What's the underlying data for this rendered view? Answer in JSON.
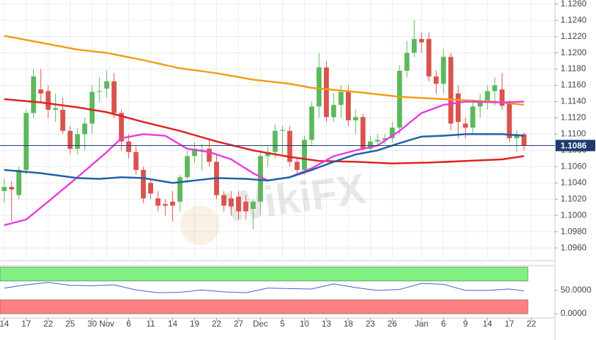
{
  "chart_data": {
    "type": "candlestick",
    "watermark": "WikiFX",
    "grid": true,
    "up_color": "#5cb85c",
    "down_color": "#d9534f",
    "categories": [
      "14",
      null,
      null,
      "17",
      null,
      null,
      "22",
      null,
      null,
      "25",
      null,
      null,
      "30",
      null,
      "Nov",
      null,
      null,
      "6",
      null,
      null,
      "11",
      null,
      null,
      "14",
      null,
      null,
      "19",
      null,
      null,
      "22",
      null,
      null,
      "27",
      null,
      null,
      "Dec",
      null,
      null,
      "5",
      null,
      null,
      "10",
      null,
      null,
      "13",
      null,
      null,
      "18",
      null,
      null,
      "23",
      null,
      null,
      "26",
      null,
      null,
      null,
      "Jan",
      null,
      null,
      "6",
      null,
      null,
      "9",
      null,
      null,
      "14",
      null,
      null,
      "17",
      null,
      null,
      "22"
    ],
    "open": [
      1.103,
      1.1035,
      1.1025,
      1.1056,
      1.1126,
      1.1155,
      1.1153,
      1.113,
      1.113,
      1.1104,
      1.1082,
      1.11,
      1.1113,
      1.1152,
      1.1156,
      1.1165,
      1.1126,
      1.1091,
      1.1078,
      1.1056,
      1.104,
      1.1021,
      1.1014,
      1.1017,
      1.1017,
      1.1047,
      1.1073,
      1.108,
      1.1082,
      1.1066,
      1.1025,
      1.1021,
      1.1023,
      1.1017,
      1.1008,
      1.1017,
      1.1073,
      1.1078,
      1.1104,
      1.1104,
      1.1066,
      1.1056,
      1.1093,
      1.1134,
      1.1182,
      1.1121,
      1.1136,
      1.1152,
      1.1117,
      1.1121,
      1.1082,
      1.1091,
      1.1093,
      1.1095,
      1.1108,
      1.1178,
      1.12,
      1.1217,
      1.1217,
      1.1171,
      1.1162,
      1.1195,
      1.115,
      1.1113,
      1.1108,
      1.1134,
      1.1139,
      1.1153,
      1.1155,
      1.1139,
      1.1095,
      1.11,
      null
    ],
    "high": [
      1.1045,
      1.1042,
      1.106,
      1.113,
      1.118,
      1.118,
      1.116,
      1.115,
      1.1145,
      1.111,
      1.1108,
      1.112,
      1.116,
      1.117,
      1.1178,
      1.1175,
      1.113,
      1.11,
      1.1085,
      1.106,
      1.1045,
      1.103,
      1.102,
      1.103,
      1.105,
      1.108,
      1.109,
      1.1088,
      1.1095,
      1.1075,
      1.103,
      1.103,
      1.103,
      1.1025,
      1.102,
      1.108,
      1.1085,
      1.1112,
      1.111,
      1.111,
      1.107,
      1.1098,
      1.114,
      1.12,
      1.119,
      1.115,
      1.116,
      1.116,
      1.113,
      1.1125,
      1.1098,
      1.11,
      1.11,
      1.1115,
      1.1185,
      1.1215,
      1.124,
      1.1225,
      1.1225,
      1.1178,
      1.1205,
      1.12,
      1.116,
      1.112,
      1.114,
      1.115,
      1.116,
      1.117,
      1.1175,
      1.1142,
      1.1105,
      1.1102,
      null
    ],
    "low": [
      1.1015,
      1.0993,
      1.102,
      1.105,
      1.112,
      1.114,
      1.112,
      1.1115,
      1.11,
      1.1075,
      1.1075,
      1.108,
      1.11,
      1.114,
      1.1145,
      1.112,
      1.108,
      1.107,
      1.105,
      1.1015,
      1.102,
      1.1005,
      1.1,
      1.0993,
      1.1005,
      1.104,
      1.1065,
      1.1055,
      1.106,
      1.102,
      1.1005,
      1.1,
      1.0995,
      1.0995,
      1.0983,
      1.1,
      1.106,
      1.107,
      1.1075,
      1.106,
      1.105,
      1.105,
      1.1085,
      1.112,
      1.1115,
      1.1115,
      1.112,
      1.111,
      1.11,
      1.108,
      1.108,
      1.1085,
      1.1088,
      1.109,
      1.11,
      1.117,
      1.1195,
      1.12,
      1.1165,
      1.115,
      1.115,
      1.1105,
      1.1095,
      1.1095,
      1.11,
      1.112,
      1.113,
      1.1135,
      1.113,
      1.109,
      1.1078,
      1.108,
      null
    ],
    "close": [
      1.1035,
      1.1032,
      1.1056,
      1.1126,
      1.1171,
      1.115,
      1.113,
      1.1132,
      1.1104,
      1.1082,
      1.11,
      1.1113,
      1.1152,
      1.1153,
      1.1165,
      1.1126,
      1.1091,
      1.1078,
      1.1056,
      1.1021,
      1.1027,
      1.1012,
      1.1012,
      1.1012,
      1.1047,
      1.1073,
      1.1082,
      1.1081,
      1.1066,
      1.1025,
      1.1012,
      1.1011,
      1.1005,
      1.1005,
      1.1017,
      1.1073,
      1.1078,
      1.1104,
      1.1105,
      1.1066,
      1.1056,
      1.1093,
      1.1134,
      1.1182,
      1.1121,
      1.1136,
      1.1152,
      1.1117,
      1.1121,
      1.1082,
      1.1091,
      1.1093,
      1.1095,
      1.1108,
      1.1178,
      1.12,
      1.1217,
      1.1213,
      1.1171,
      1.1162,
      1.1195,
      1.1113,
      1.1115,
      1.1108,
      1.1134,
      1.1139,
      1.1153,
      1.116,
      1.1135,
      1.1095,
      1.11,
      1.1086,
      null
    ],
    "lines": [
      {
        "color": "#f39c12",
        "x": [
          0,
          10,
          14,
          19,
          24,
          29,
          34,
          39,
          42,
          48,
          54,
          60,
          67,
          71
        ],
        "values": [
          1.1221,
          1.1204,
          1.12,
          1.1191,
          1.1181,
          1.1175,
          1.1167,
          1.1162,
          1.1157,
          1.1152,
          1.1146,
          1.1143,
          1.114,
          1.1136
        ]
      },
      {
        "color": "#e02020",
        "x": [
          0,
          5,
          10,
          14,
          19,
          24,
          29,
          34,
          39,
          43,
          48,
          53,
          58,
          63,
          68,
          71
        ],
        "values": [
          1.1143,
          1.1139,
          1.1133,
          1.1127,
          1.1115,
          1.1104,
          1.1091,
          1.108,
          1.1072,
          1.1067,
          1.1066,
          1.1064,
          1.1065,
          1.1067,
          1.1069,
          1.1073
        ]
      },
      {
        "color": "#e83ee0",
        "x": [
          0,
          3,
          6,
          10,
          14,
          16,
          19,
          22,
          25,
          28,
          31,
          34,
          36,
          39,
          42,
          45,
          48,
          51,
          54,
          57,
          60,
          63,
          68,
          71
        ],
        "values": [
          1.0988,
          1.0995,
          1.1017,
          1.1047,
          1.1078,
          1.1095,
          1.11,
          1.1098,
          1.1082,
          1.1078,
          1.1069,
          1.1052,
          1.1043,
          1.1047,
          1.1058,
          1.1073,
          1.108,
          1.1086,
          1.1104,
          1.1126,
          1.1136,
          1.114,
          1.1139,
          1.114
        ]
      },
      {
        "color": "#1f5fa8",
        "x": [
          0,
          5,
          10,
          13,
          16,
          19,
          23,
          26,
          29,
          33,
          36,
          39,
          42,
          45,
          48,
          51,
          54,
          57,
          60,
          63,
          68,
          71
        ],
        "values": [
          1.1056,
          1.1052,
          1.1046,
          1.1045,
          1.1047,
          1.1046,
          1.104,
          1.1043,
          1.1046,
          1.1045,
          1.1043,
          1.1047,
          1.1056,
          1.1066,
          1.1075,
          1.108,
          1.1089,
          1.1097,
          1.1098,
          1.11,
          1.11,
          1.1098
        ]
      }
    ],
    "last_price": 1.1086,
    "ylim": [
      1.0947,
      1.1265
    ],
    "yticks": [
      {
        "value": 1.096,
        "label": "1.0960"
      },
      {
        "value": 1.098,
        "label": "1.0980"
      },
      {
        "value": 1.1,
        "label": "1.1000"
      },
      {
        "value": 1.102,
        "label": "1.1020"
      },
      {
        "value": 1.104,
        "label": "1.1040"
      },
      {
        "value": 1.106,
        "label": "1.1060"
      },
      {
        "value": 1.108,
        "label": "1.1080"
      },
      {
        "value": 1.11,
        "label": "1.1100"
      },
      {
        "value": 1.112,
        "label": "1.1120"
      },
      {
        "value": 1.114,
        "label": "1.1140"
      },
      {
        "value": 1.116,
        "label": "1.1160"
      },
      {
        "value": 1.118,
        "label": "1.1180"
      },
      {
        "value": 1.12,
        "label": "1.1200"
      },
      {
        "value": 1.122,
        "label": "1.1220"
      },
      {
        "value": 1.124,
        "label": "1.1240"
      },
      {
        "value": 1.126,
        "label": "1.1260"
      }
    ],
    "indicator": {
      "ylim": [
        0,
        100
      ],
      "yticks": [
        {
          "value": 50,
          "label": "50.0000"
        },
        {
          "value": 0,
          "label": "0.0000"
        }
      ],
      "bands": [
        {
          "range": [
            70,
            100
          ],
          "color": "#7ff07f"
        },
        {
          "range": [
            0,
            30
          ],
          "color": "#ff8080"
        }
      ],
      "color": "#3a5fcd",
      "x": [
        0,
        3,
        6,
        9,
        12,
        15,
        18,
        21,
        24,
        27,
        30,
        33,
        36,
        39,
        42,
        45,
        48,
        51,
        54,
        57,
        60,
        63,
        66,
        69,
        71
      ],
      "values": [
        55,
        62,
        67,
        61,
        60,
        62,
        51,
        45,
        46,
        51,
        47,
        45,
        55,
        54,
        53,
        64,
        56,
        50,
        52,
        65,
        63,
        50,
        50,
        53,
        49
      ]
    }
  }
}
